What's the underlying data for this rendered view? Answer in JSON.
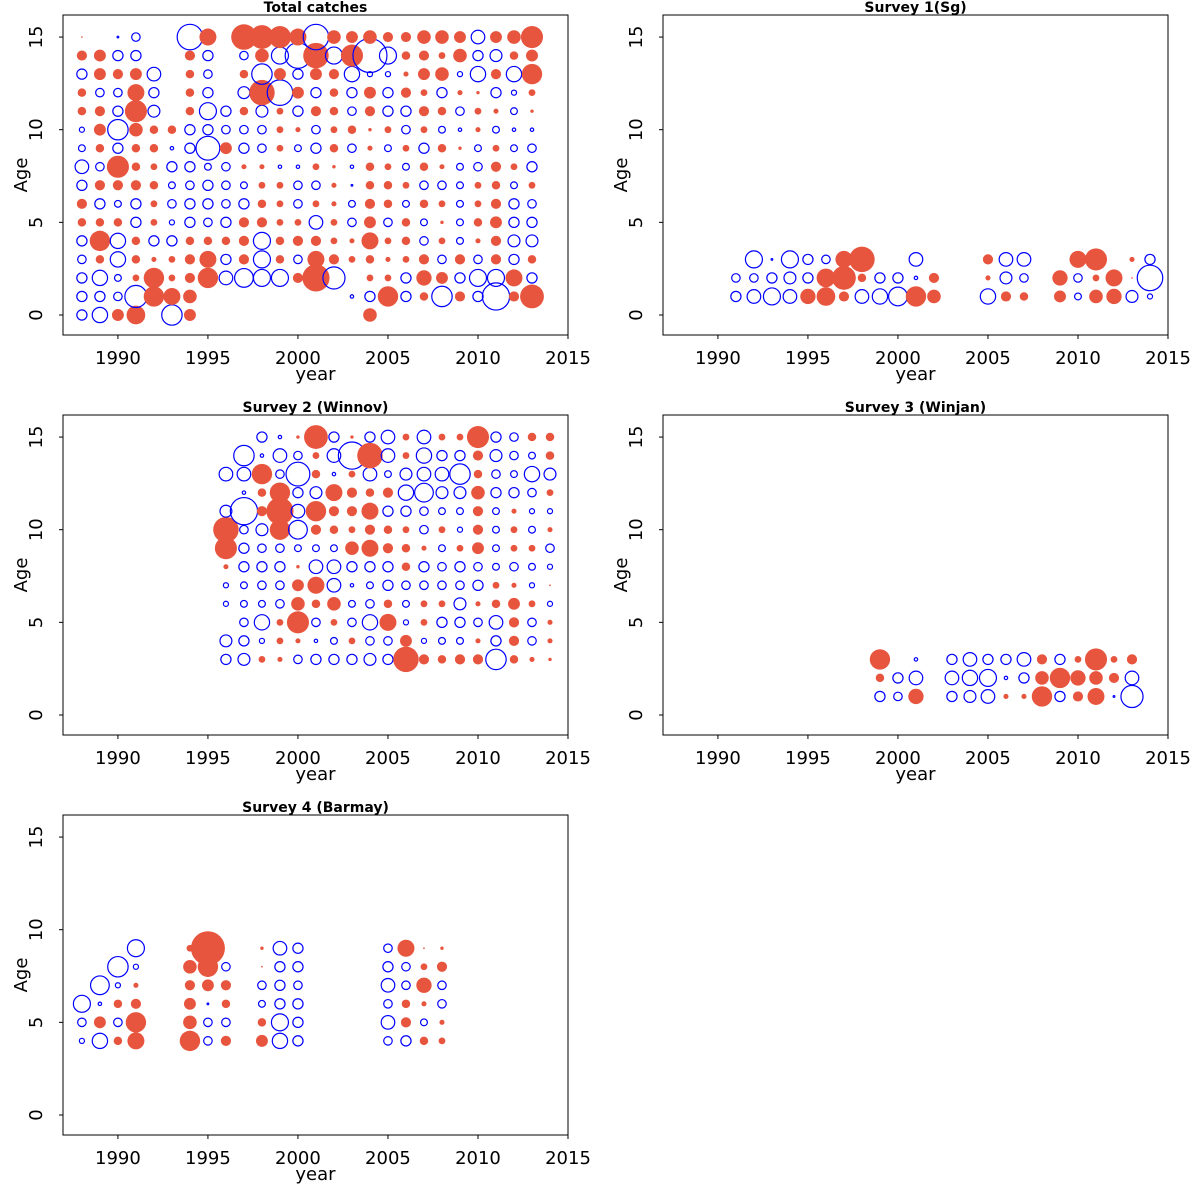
{
  "chart_data": [
    {
      "type": "bubble",
      "title": "Total catches",
      "xlabel": "year",
      "ylabel": "Age",
      "xlim": [
        1986.95,
        2015
      ],
      "ylim": [
        -1.08,
        16.19
      ],
      "xticks": [
        1990,
        1995,
        2000,
        2005,
        2010,
        2015
      ],
      "yticks": [
        0,
        5,
        10,
        15
      ],
      "positive_color": "#e8553f",
      "negative_color": "#0000ff",
      "x": [
        1988,
        1989,
        1990,
        1991,
        1992,
        1993,
        1994,
        1995,
        1996,
        1997,
        1998,
        1999,
        2000,
        2001,
        2002,
        2003,
        2004,
        2005,
        2006,
        2007,
        2008,
        2009,
        2010,
        2011,
        2012,
        2013
      ],
      "y": [
        0,
        1,
        2,
        3,
        4,
        5,
        6,
        7,
        8,
        9,
        10,
        11,
        12,
        13,
        14,
        15
      ],
      "values": [
        [
          -0.6,
          -0.9,
          0.7,
          1.1,
          null,
          -1.2,
          0.7,
          null,
          null,
          null,
          null,
          null,
          null,
          null,
          null,
          null,
          0.8,
          null,
          null,
          null,
          null,
          null,
          null,
          null,
          null,
          null
        ],
        [
          -0.6,
          -0.6,
          -0.5,
          -1.3,
          1.2,
          1.0,
          0.8,
          null,
          null,
          null,
          null,
          null,
          null,
          null,
          null,
          -0.2,
          -0.6,
          1.2,
          -0.6,
          0.5,
          -1.2,
          0.6,
          -0.6,
          -1.6,
          0.6,
          1.4
        ],
        [
          -0.6,
          -0.9,
          -0.4,
          0.4,
          1.2,
          0.4,
          0.6,
          1.2,
          -0.8,
          -1.1,
          -1.0,
          -1.0,
          0.6,
          1.6,
          -1.3,
          null,
          0.4,
          0.4,
          -0.6,
          0.9,
          0.7,
          -0.6,
          -1.0,
          -1.0,
          1.0,
          -0.6
        ],
        [
          -0.5,
          0.5,
          -0.9,
          0.5,
          0.3,
          0.4,
          0.6,
          1.0,
          -0.6,
          0.6,
          -1.0,
          0.5,
          -0.5,
          1.0,
          0.6,
          0.4,
          0.5,
          0.3,
          0.4,
          0.6,
          -0.5,
          0.6,
          -0.5,
          0.6,
          -0.6,
          0.5
        ],
        [
          -0.6,
          1.2,
          -0.9,
          0.5,
          -0.6,
          -0.6,
          0.5,
          0.5,
          0.5,
          0.6,
          -1.0,
          0.5,
          0.6,
          0.6,
          0.4,
          0.3,
          1.0,
          0.4,
          0.5,
          -0.5,
          0.4,
          -0.4,
          0.3,
          0.6,
          -0.7,
          -0.7
        ],
        [
          0.5,
          0.5,
          0.5,
          -0.6,
          0.4,
          -0.3,
          -0.6,
          -0.5,
          -0.6,
          0.6,
          0.6,
          0.4,
          0.4,
          -0.8,
          0.4,
          -0.5,
          0.7,
          -0.5,
          0.5,
          -0.4,
          0.2,
          -0.4,
          0.5,
          0.7,
          -0.6,
          -0.6
        ],
        [
          0.6,
          -0.6,
          -0.4,
          -0.6,
          0.4,
          -0.5,
          -0.6,
          -0.6,
          -0.5,
          -0.6,
          0.5,
          0.4,
          -0.5,
          0.4,
          0.3,
          -0.4,
          0.6,
          0.5,
          -0.4,
          0.5,
          0.4,
          -0.4,
          0.4,
          0.6,
          -0.6,
          -0.5
        ],
        [
          -0.6,
          0.6,
          0.6,
          0.6,
          0.5,
          -0.4,
          -0.5,
          -0.6,
          -0.5,
          -0.4,
          0.4,
          0.4,
          -0.5,
          -0.5,
          0.3,
          -0.1,
          0.5,
          0.5,
          0.4,
          -0.5,
          -0.5,
          -0.4,
          0.4,
          0.5,
          -0.4,
          0.4
        ],
        [
          -0.8,
          -0.5,
          1.3,
          0.5,
          0.4,
          -0.6,
          -0.6,
          -0.4,
          -0.5,
          0.3,
          0.3,
          -0.2,
          -0.2,
          0.4,
          0.2,
          -0.2,
          0.5,
          0.4,
          -0.4,
          0.5,
          0.3,
          -0.4,
          -0.5,
          0.6,
          0.4,
          -0.6
        ],
        [
          -0.4,
          0.5,
          -0.6,
          0.5,
          0.5,
          -0.2,
          -0.6,
          -1.4,
          0.7,
          -0.6,
          -0.5,
          0.4,
          -0.4,
          -0.6,
          0.5,
          -0.5,
          0.3,
          -0.4,
          0.4,
          -0.6,
          0.5,
          0.2,
          -0.4,
          0.4,
          -0.4,
          -0.5
        ],
        [
          -0.3,
          0.7,
          -1.2,
          0.8,
          0.5,
          0.5,
          -0.6,
          -0.6,
          -0.5,
          -0.5,
          -0.5,
          0.4,
          0.3,
          -0.5,
          0.4,
          0.5,
          0.2,
          0.4,
          -0.5,
          0.4,
          -0.4,
          -0.2,
          0.3,
          -0.4,
          -0.2,
          -0.2
        ],
        [
          0.5,
          0.6,
          -0.6,
          1.3,
          -0.7,
          null,
          0.5,
          -1.0,
          -0.6,
          0.5,
          -0.7,
          0.4,
          -0.6,
          0.6,
          0.5,
          -0.5,
          0.6,
          -0.6,
          -0.6,
          0.6,
          0.5,
          -0.5,
          0.4,
          0.3,
          -0.4,
          0.2
        ],
        [
          0.5,
          -0.5,
          -0.5,
          1.0,
          -0.6,
          null,
          0.5,
          -0.6,
          null,
          -0.7,
          1.5,
          -1.5,
          0.7,
          -0.6,
          0.5,
          -0.6,
          0.7,
          -0.6,
          0.6,
          0.4,
          -0.6,
          0.3,
          0.2,
          -0.6,
          -0.3,
          0.4
        ],
        [
          -0.6,
          0.7,
          0.6,
          0.7,
          -0.8,
          null,
          0.5,
          -0.5,
          null,
          0.5,
          -1.2,
          0.7,
          -0.6,
          0.7,
          0.6,
          -0.9,
          -0.3,
          -0.3,
          0.3,
          0.7,
          0.8,
          -0.3,
          -0.9,
          0.6,
          -0.9,
          1.2
        ],
        [
          0.6,
          0.7,
          -0.6,
          -0.6,
          null,
          null,
          0.6,
          -0.6,
          null,
          -0.5,
          0.8,
          -1.0,
          -1.5,
          1.5,
          -1.0,
          1.3,
          -2.0,
          -1.0,
          0.5,
          0.6,
          0.4,
          0.8,
          -0.6,
          -0.7,
          0.5,
          0.7
        ],
        [
          0.1,
          null,
          -0.1,
          -0.5,
          null,
          null,
          -1.5,
          1.0,
          null,
          1.5,
          1.4,
          1.3,
          1.0,
          -1.5,
          0.8,
          0.7,
          0.8,
          0.6,
          0.6,
          0.8,
          0.8,
          0.7,
          -0.8,
          0.7,
          0.8,
          1.3
        ]
      ]
    },
    {
      "type": "bubble",
      "title": "Survey 1(Sg)",
      "xlabel": "year",
      "ylabel": "Age",
      "xlim": [
        1986.95,
        2015
      ],
      "ylim": [
        -1.08,
        16.19
      ],
      "xticks": [
        1990,
        1995,
        2000,
        2005,
        2010,
        2015
      ],
      "yticks": [
        0,
        5,
        10,
        15
      ],
      "positive_color": "#e8553f",
      "negative_color": "#0000ff",
      "x": [
        1991,
        1992,
        1993,
        1994,
        1995,
        1996,
        1997,
        1998,
        1999,
        2000,
        2001,
        2002,
        2003,
        2004,
        2005,
        2006,
        2007,
        2008,
        2009,
        2010,
        2011,
        2012,
        2013,
        2014
      ],
      "y": [
        1,
        2,
        3
      ],
      "values": [
        [
          -0.6,
          -0.8,
          -1.0,
          -0.8,
          0.9,
          1.1,
          0.6,
          -0.8,
          -0.9,
          -1.1,
          1.2,
          0.8,
          null,
          null,
          -0.9,
          0.6,
          0.5,
          null,
          0.7,
          -0.4,
          0.8,
          0.9,
          -0.7,
          -0.3
        ],
        [
          -0.5,
          -0.5,
          -0.6,
          -0.7,
          -0.6,
          1.1,
          1.4,
          0.5,
          -0.6,
          -0.6,
          -0.2,
          0.6,
          null,
          null,
          0.3,
          -0.7,
          -0.5,
          null,
          0.9,
          -0.5,
          0.4,
          1.0,
          0.1,
          -1.5
        ],
        [
          null,
          -1.0,
          -0.1,
          -1.0,
          -0.6,
          -0.5,
          1.0,
          1.5,
          null,
          null,
          -0.8,
          null,
          null,
          null,
          0.6,
          -0.8,
          -0.8,
          null,
          null,
          1.0,
          1.3,
          null,
          0.3,
          -0.6
        ]
      ]
    },
    {
      "type": "bubble",
      "title": "Survey 2 (Winnov)",
      "xlabel": "year",
      "ylabel": "Age",
      "xlim": [
        1986.95,
        2015
      ],
      "ylim": [
        -1.08,
        16.19
      ],
      "xticks": [
        1990,
        1995,
        2000,
        2005,
        2010,
        2015
      ],
      "yticks": [
        0,
        5,
        10,
        15
      ],
      "positive_color": "#e8553f",
      "negative_color": "#0000ff",
      "x": [
        1996,
        1997,
        1998,
        1999,
        2000,
        2001,
        2002,
        2003,
        2004,
        2005,
        2006,
        2007,
        2008,
        2009,
        2010,
        2011,
        2012,
        2013,
        2014
      ],
      "y": [
        3,
        4,
        5,
        6,
        7,
        8,
        9,
        10,
        11,
        12,
        13,
        14,
        15
      ],
      "values": [
        [
          -0.6,
          -0.7,
          0.4,
          0.3,
          -0.5,
          -0.6,
          -0.6,
          -0.6,
          -0.7,
          -0.6,
          1.5,
          0.6,
          0.5,
          0.6,
          0.6,
          -1.2,
          0.5,
          0.3,
          0.2
        ],
        [
          -0.7,
          -0.6,
          -0.3,
          0.4,
          0.3,
          -0.2,
          -0.4,
          0.4,
          -0.5,
          -0.5,
          0.7,
          -0.3,
          -0.4,
          -0.4,
          0.3,
          -0.6,
          0.6,
          -0.5,
          0.3
        ],
        [
          null,
          -0.5,
          -0.9,
          0.4,
          1.3,
          -0.5,
          0.4,
          -0.5,
          -0.9,
          1.0,
          -0.3,
          0.4,
          -0.6,
          -0.6,
          -0.5,
          -0.8,
          0.6,
          -0.5,
          0.3
        ],
        [
          -0.3,
          -0.4,
          -0.4,
          -0.5,
          0.8,
          0.5,
          0.8,
          -0.4,
          -0.5,
          0.5,
          -0.4,
          0.4,
          0.4,
          -0.7,
          0.3,
          0.5,
          0.7,
          0.4,
          -0.3
        ],
        [
          -0.3,
          -0.4,
          -0.5,
          -0.5,
          0.7,
          1.0,
          -0.8,
          -0.2,
          -0.4,
          -0.6,
          -0.5,
          -0.5,
          -0.5,
          -0.5,
          -0.6,
          0.4,
          0.3,
          -0.3,
          0.1
        ],
        [
          0.3,
          -0.6,
          -0.6,
          -0.6,
          0.2,
          -0.8,
          -0.8,
          -0.6,
          -0.6,
          -0.6,
          0.5,
          -0.6,
          -0.5,
          -0.6,
          -0.5,
          -0.4,
          -0.5,
          -0.4,
          -0.3
        ],
        [
          1.3,
          -0.6,
          -0.5,
          -0.5,
          -0.4,
          -0.4,
          -0.4,
          0.8,
          1.0,
          0.6,
          0.5,
          0.3,
          -0.4,
          0.4,
          0.7,
          -0.4,
          0.4,
          0.4,
          -0.5
        ],
        [
          1.5,
          -0.5,
          -0.7,
          1.2,
          -1.1,
          0.6,
          0.5,
          0.4,
          0.6,
          0.5,
          0.4,
          -0.5,
          0.4,
          -0.3,
          0.6,
          -0.4,
          0.4,
          -0.4,
          0.3
        ],
        [
          -0.7,
          -1.6,
          0.6,
          1.6,
          -0.8,
          1.2,
          0.6,
          0.6,
          1.0,
          -0.6,
          -0.6,
          -0.5,
          -0.4,
          -0.4,
          0.6,
          -0.4,
          0.3,
          -0.3,
          -0.3
        ],
        [
          null,
          -0.2,
          0.5,
          1.2,
          -0.6,
          -0.7,
          1.0,
          0.6,
          0.5,
          0.6,
          -0.9,
          -1.1,
          -0.7,
          -0.7,
          0.8,
          -0.6,
          -0.6,
          -0.5,
          0.4
        ],
        [
          -0.8,
          -0.8,
          1.2,
          -0.5,
          -1.4,
          0.5,
          -0.2,
          0.4,
          -0.8,
          -0.4,
          -0.7,
          -0.8,
          -0.8,
          -1.2,
          0.5,
          -0.5,
          -0.4,
          -0.9,
          -0.7
        ],
        [
          null,
          -1.2,
          -0.2,
          -0.8,
          -0.5,
          0.4,
          -0.8,
          -1.6,
          1.5,
          -0.8,
          0.4,
          -0.9,
          -0.6,
          -0.6,
          0.6,
          -0.7,
          -0.5,
          -0.4,
          0.5
        ],
        [
          null,
          null,
          -0.6,
          -0.2,
          0.2,
          1.4,
          -0.6,
          0.2,
          -0.6,
          -0.8,
          0.4,
          -0.8,
          0.4,
          0.4,
          1.3,
          -0.6,
          -0.5,
          0.5,
          0.5
        ]
      ]
    },
    {
      "type": "bubble",
      "title": "Survey 3 (Winjan)",
      "xlabel": "year",
      "ylabel": "Age",
      "xlim": [
        1986.95,
        2015
      ],
      "ylim": [
        -1.08,
        16.19
      ],
      "xticks": [
        1990,
        1995,
        2000,
        2005,
        2010,
        2015
      ],
      "yticks": [
        0,
        5,
        10,
        15
      ],
      "positive_color": "#e8553f",
      "negative_color": "#0000ff",
      "x": [
        1999,
        2000,
        2001,
        2002,
        2003,
        2004,
        2005,
        2006,
        2007,
        2008,
        2009,
        2010,
        2011,
        2012,
        2013
      ],
      "y": [
        1,
        2,
        3
      ],
      "values": [
        [
          -0.6,
          -0.5,
          0.9,
          null,
          -0.6,
          -0.7,
          -0.8,
          0.3,
          0.3,
          1.2,
          -0.6,
          0.6,
          1.0,
          -0.1,
          -1.3
        ],
        [
          0.5,
          -0.6,
          -0.8,
          null,
          -0.8,
          -0.9,
          -1.0,
          -0.2,
          -0.6,
          0.8,
          1.2,
          0.9,
          0.8,
          0.6,
          -0.8
        ],
        [
          1.2,
          null,
          -0.2,
          null,
          -0.6,
          -0.8,
          -0.6,
          -0.6,
          -0.8,
          0.6,
          -0.6,
          0.4,
          1.3,
          0.4,
          0.6
        ]
      ]
    },
    {
      "type": "bubble",
      "title": "Survey 4 (Barmay)",
      "xlabel": "year",
      "ylabel": "Age",
      "xlim": [
        1986.95,
        2015
      ],
      "ylim": [
        -1.08,
        16.19
      ],
      "xticks": [
        1990,
        1995,
        2000,
        2005,
        2010,
        2015
      ],
      "yticks": [
        0,
        5,
        10,
        15
      ],
      "positive_color": "#e8553f",
      "negative_color": "#0000ff",
      "x": [
        1988,
        1989,
        1990,
        1991,
        1994,
        1995,
        1996,
        1998,
        1999,
        2000,
        2005,
        2006,
        2007,
        2008
      ],
      "y": [
        4,
        5,
        6,
        7,
        8,
        9
      ],
      "values": [
        [
          -0.3,
          -0.9,
          0.5,
          1.0,
          1.2,
          -0.5,
          0.6,
          0.7,
          -0.9,
          -0.6,
          -0.5,
          -0.6,
          0.5,
          0.4
        ],
        [
          -0.5,
          0.7,
          -0.5,
          1.2,
          0.8,
          -0.5,
          -0.5,
          0.5,
          -1.0,
          -0.6,
          -0.8,
          0.6,
          -0.4,
          0.3
        ],
        [
          -1.0,
          -0.2,
          0.5,
          0.6,
          0.7,
          -0.1,
          0.5,
          -0.4,
          -0.6,
          -0.6,
          -0.5,
          0.5,
          0.3,
          -0.5
        ],
        [
          null,
          -1.1,
          -0.3,
          0.3,
          0.6,
          0.7,
          0.6,
          -0.5,
          -0.6,
          -0.5,
          -0.8,
          -0.5,
          0.9,
          -0.5
        ],
        [
          null,
          null,
          -1.2,
          -0.3,
          0.8,
          1.2,
          -0.5,
          0.1,
          -0.6,
          -0.6,
          -0.6,
          -0.5,
          0.4,
          0.6
        ],
        [
          null,
          null,
          null,
          -1.0,
          0.4,
          2.0,
          null,
          0.2,
          -0.8,
          -0.6,
          -0.5,
          1.0,
          0.1,
          0.2
        ]
      ]
    }
  ]
}
